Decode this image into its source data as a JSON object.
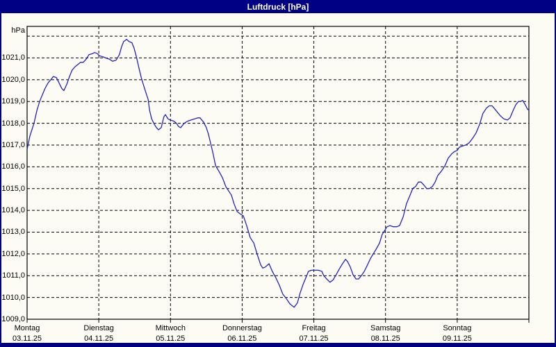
{
  "window": {
    "title": "Luftdruck [hPa]"
  },
  "colors": {
    "window_chrome": "#000080",
    "titlebar_bg": "#000084",
    "title_text": "#ffffff",
    "panel_bg": "#fcfcf4",
    "grid_line": "#000000",
    "frame_line": "#000000",
    "label_text": "#000000",
    "series_line": "#2222c0"
  },
  "chart_data": {
    "type": "line",
    "title": "Luftdruck [hPa]",
    "legend_position": "none",
    "grid": "dashed",
    "y_axis": {
      "unit": "hPa",
      "min": 1009,
      "frame_top_value": 1022.45,
      "gridline_values": [
        1010,
        1011,
        1012,
        1013,
        1014,
        1015,
        1016,
        1017,
        1018,
        1019,
        1020,
        1021,
        1022
      ],
      "tick_labels": [
        {
          "value": 1021,
          "label": "1021,0"
        },
        {
          "value": 1020,
          "label": "1020,0"
        },
        {
          "value": 1019,
          "label": "1019,0"
        },
        {
          "value": 1018,
          "label": "1018,0"
        },
        {
          "value": 1017,
          "label": "1017,0"
        },
        {
          "value": 1016,
          "label": "1016,0"
        },
        {
          "value": 1015,
          "label": "1015,0"
        },
        {
          "value": 1014,
          "label": "1014,0"
        },
        {
          "value": 1013,
          "label": "1013,0"
        },
        {
          "value": 1012,
          "label": "1012,0"
        },
        {
          "value": 1011,
          "label": "1011,0"
        },
        {
          "value": 1010,
          "label": "1010,0"
        },
        {
          "value": 1009,
          "label": "1009,0"
        }
      ]
    },
    "x_axis": {
      "hours_total": 168,
      "days": [
        {
          "name": "Montag",
          "date": "03.11.25"
        },
        {
          "name": "Dienstag",
          "date": "04.11.25"
        },
        {
          "name": "Mittwoch",
          "date": "05.11.25"
        },
        {
          "name": "Donnerstag",
          "date": "06.11.25"
        },
        {
          "name": "Freitag",
          "date": "07.11.25"
        },
        {
          "name": "Samstag",
          "date": "08.11.25"
        },
        {
          "name": "Sonntag",
          "date": "09.11.25"
        }
      ]
    },
    "series": [
      {
        "name": "Luftdruck",
        "color": "#2222c0",
        "x_hours": [
          0,
          0.9,
          1.6,
          2.3,
          3.3,
          4.2,
          5.1,
          6,
          7,
          7.9,
          8.8,
          9.8,
          10.7,
          11.6,
          12.3,
          13.3,
          14.2,
          15.1,
          16.1,
          17,
          17.9,
          18.8,
          19.8,
          20.7,
          21.9,
          22.6,
          23.5,
          24.2,
          25.4,
          26.3,
          27.5,
          28.6,
          29.8,
          30.9,
          31.6,
          32.3,
          33.3,
          34.2,
          35.1,
          35.8,
          36.5,
          37.5,
          38.2,
          39.1,
          39.8,
          40.5,
          41,
          41.7,
          42.6,
          43.3,
          44,
          44.9,
          45.8,
          46.3,
          47.2,
          47.9,
          49.1,
          50,
          50.7,
          51.4,
          52.6,
          53.8,
          54.9,
          56.1,
          57.2,
          57.9,
          59.1,
          60,
          60.7,
          61.4,
          62.1,
          63.1,
          64.2,
          65.4,
          66.5,
          67.2,
          68.4,
          69.3,
          70.3,
          71.2,
          72.4,
          73.5,
          74.7,
          75.9,
          77,
          78.2,
          78.9,
          79.8,
          81,
          82.1,
          83.3,
          84.5,
          85.6,
          86.8,
          88,
          89.4,
          90.5,
          91.4,
          92.4,
          93.3,
          94.2,
          95.2,
          96.1,
          97.5,
          98.7,
          99.3,
          100.3,
          101.4,
          102.4,
          103.3,
          104.5,
          105.6,
          106.6,
          107.3,
          108.2,
          109.1,
          110.1,
          111,
          111.9,
          112.9,
          113.8,
          115,
          116.1,
          117,
          118,
          118.9,
          119.6,
          120.5,
          121.5,
          122.6,
          123.8,
          124.7,
          125.9,
          127,
          128.2,
          129.1,
          130.1,
          131,
          131.9,
          132.9,
          133.8,
          134.7,
          135.7,
          136.6,
          137.5,
          138.7,
          139.9,
          141,
          142.2,
          143.1,
          144,
          144.7,
          145.6,
          146.8,
          148,
          149.1,
          150.3,
          151.5,
          152.6,
          153.8,
          154.7,
          155.7,
          156.6,
          157.5,
          158.4,
          159.6,
          160.8,
          161.7,
          162.6,
          163.6,
          164.5,
          165.2,
          165.9,
          166.8,
          167.5,
          168
        ],
        "y_hpa": [
          1016.8,
          1017.4,
          1017.7,
          1018,
          1018.6,
          1019,
          1019.3,
          1019.6,
          1019.85,
          1020,
          1020.15,
          1020.1,
          1019.85,
          1019.6,
          1019.5,
          1019.8,
          1020.15,
          1020.45,
          1020.6,
          1020.7,
          1020.8,
          1020.8,
          1020.95,
          1021.15,
          1021.2,
          1021.25,
          1021.2,
          1021.1,
          1021.05,
          1021,
          1020.95,
          1020.85,
          1020.9,
          1021.15,
          1021.5,
          1021.75,
          1021.85,
          1021.75,
          1021.7,
          1021.45,
          1021.1,
          1020.5,
          1020.1,
          1019.7,
          1019.4,
          1019.1,
          1018.6,
          1018.2,
          1017.95,
          1017.8,
          1017.7,
          1017.8,
          1018.3,
          1018.4,
          1018.2,
          1018.15,
          1018.1,
          1018,
          1017.85,
          1017.8,
          1018,
          1018.1,
          1018.15,
          1018.2,
          1018.25,
          1018.25,
          1018.05,
          1017.8,
          1017.5,
          1017.1,
          1016.7,
          1016.05,
          1015.8,
          1015.5,
          1015.1,
          1014.95,
          1014.7,
          1014.3,
          1013.95,
          1013.85,
          1013.75,
          1013.3,
          1012.75,
          1012.5,
          1012,
          1011.5,
          1011.35,
          1011.4,
          1011.55,
          1011.2,
          1010.9,
          1010.55,
          1010.15,
          1009.95,
          1009.7,
          1009.55,
          1009.75,
          1010.2,
          1010.6,
          1010.9,
          1011.2,
          1011.25,
          1011.25,
          1011.25,
          1011.2,
          1011,
          1010.85,
          1010.7,
          1010.8,
          1011,
          1011.3,
          1011.55,
          1011.75,
          1011.65,
          1011.4,
          1011.05,
          1010.85,
          1010.85,
          1011,
          1011.2,
          1011.45,
          1011.8,
          1012.05,
          1012.25,
          1012.5,
          1012.9,
          1013.05,
          1013.25,
          1013.3,
          1013.25,
          1013.25,
          1013.3,
          1013.7,
          1014.3,
          1014.7,
          1015,
          1015.1,
          1015.3,
          1015.3,
          1015.15,
          1015,
          1015,
          1015.1,
          1015.3,
          1015.6,
          1015.8,
          1016.05,
          1016.4,
          1016.6,
          1016.7,
          1016.75,
          1016.9,
          1016.95,
          1017,
          1017.1,
          1017.3,
          1017.55,
          1017.95,
          1018.45,
          1018.7,
          1018.8,
          1018.8,
          1018.65,
          1018.5,
          1018.35,
          1018.2,
          1018.15,
          1018.25,
          1018.55,
          1018.85,
          1019,
          1019,
          1019.05,
          1018.85,
          1018.65,
          1018.6
        ]
      }
    ]
  }
}
